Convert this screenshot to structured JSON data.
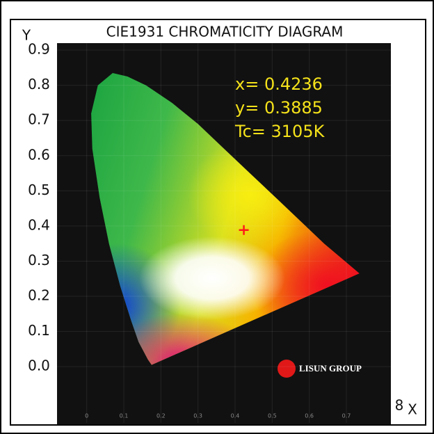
{
  "chart_data": {
    "type": "scatter",
    "title": "CIE1931 CHROMATICITY DIAGRAM",
    "y_label": "Y",
    "x_label": "X",
    "corner_mark": "8",
    "x": [
      0.4236
    ],
    "values": [
      0.3885
    ],
    "color": "#ff1a1a",
    "annotations": [
      "x= 0.4236",
      "y= 0.3885",
      "Tc= 3105K"
    ],
    "logo": "LISUN GROUP",
    "xlim": [
      -0.08,
      0.82
    ],
    "xticks": [
      0,
      0.1,
      0.2,
      0.3,
      0.4,
      0.5,
      0.6,
      0.7
    ],
    "ylim": [
      -0.16,
      0.92
    ],
    "yticks": [
      {
        "value": 0,
        "label": "0.0"
      },
      0.1,
      0.2,
      0.3,
      0.4,
      0.5,
      0.6,
      0.7,
      0.8,
      0.9
    ],
    "grid": true
  }
}
